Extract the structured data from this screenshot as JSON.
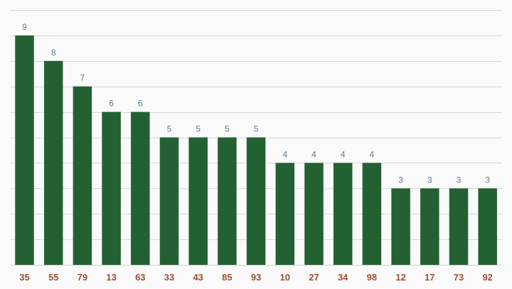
{
  "chart_data": {
    "type": "bar",
    "title": "",
    "xlabel": "",
    "ylabel": "",
    "categories": [
      "35",
      "55",
      "79",
      "13",
      "63",
      "33",
      "43",
      "85",
      "93",
      "10",
      "27",
      "34",
      "98",
      "12",
      "17",
      "73",
      "92"
    ],
    "values": [
      9,
      8,
      7,
      6,
      6,
      5,
      5,
      5,
      5,
      4,
      4,
      4,
      4,
      3,
      3,
      3,
      3
    ],
    "ylim": [
      0,
      10
    ],
    "grid": true,
    "legend": "none",
    "colors": {
      "bar": "#236133",
      "value_label": "#5b7f95",
      "category_label": "#9b4f34",
      "grid": "#d9d9d9",
      "background": "#fafafa"
    }
  }
}
